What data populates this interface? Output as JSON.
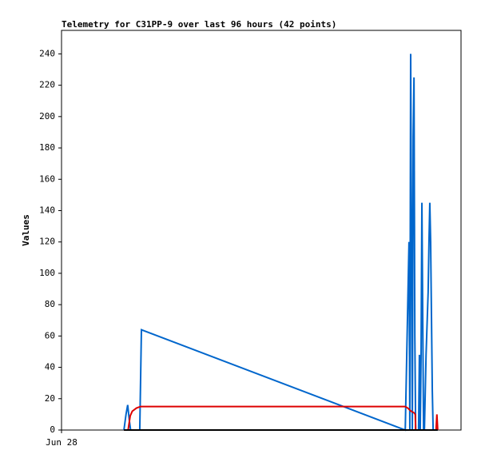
{
  "chart_data": {
    "type": "line",
    "title": "Telemetry for C31PP-9 over last 96 hours (42 points)",
    "ylabel": "Values",
    "xlim": [
      0,
      96
    ],
    "xticks": [
      {
        "value": 0,
        "label": "Jun 28"
      }
    ],
    "ylim": [
      0,
      255
    ],
    "yticks": [
      0,
      20,
      40,
      60,
      80,
      100,
      120,
      140,
      160,
      180,
      200,
      220,
      240
    ],
    "series": [
      {
        "color": "#0066cc",
        "x": [
          15.0,
          15.5,
          15.9,
          16.3,
          16.6,
          18.8,
          19.0,
          19.2,
          82.6,
          83.5,
          83.7,
          83.9,
          84.1,
          84.3,
          84.5,
          84.7,
          84.9,
          85.1,
          85.8,
          86.0,
          86.2,
          86.4,
          86.6,
          86.8,
          87.0,
          87.2,
          87.6,
          87.9,
          88.1,
          88.3,
          88.5,
          88.7,
          88.9,
          89.1,
          89.3,
          89.5,
          89.7,
          89.9,
          90.1,
          90.2,
          90.3,
          90.4
        ],
        "values": [
          0,
          10,
          16,
          6,
          0,
          0,
          32,
          64,
          0,
          120,
          0,
          240,
          120,
          0,
          187,
          225,
          60,
          0,
          0,
          48,
          0,
          48,
          145,
          72,
          0,
          0,
          48,
          72,
          88,
          120,
          145,
          120,
          72,
          25,
          0,
          0,
          0,
          0,
          0,
          0,
          0,
          0
        ]
      },
      {
        "color": "#dd0000",
        "x": [
          15.0,
          16.0,
          16.5,
          17.0,
          18.0,
          19.0,
          82.6,
          83.2,
          84.0,
          84.7,
          85.0,
          85.1,
          85.5,
          89.5,
          90.0,
          90.2,
          90.4
        ],
        "values": [
          0,
          0,
          9,
          12,
          14,
          15,
          15,
          14,
          12,
          11,
          10,
          0,
          0,
          0,
          0,
          10,
          0
        ]
      },
      {
        "color": "#000000",
        "x": [
          15.0,
          90.4
        ],
        "values": [
          0,
          0
        ]
      }
    ]
  }
}
